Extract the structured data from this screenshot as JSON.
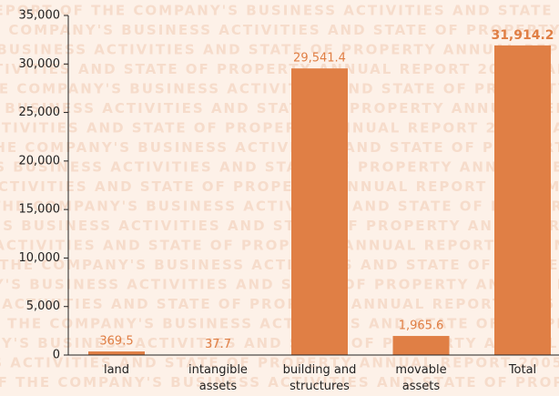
{
  "chart_data": {
    "type": "bar",
    "watermark": "REPORT OF THE COMPANY'S BUSINESS ACTIVITIES AND STATE OF PROPERTY ANNUAL REPORT 2005 MANAGING BOARD",
    "categories": [
      "land",
      "intangible\nassets",
      "building and\nstructures",
      "movable\nassets",
      "Total"
    ],
    "values": [
      369.5,
      37.7,
      29541.4,
      1965.6,
      31914.2
    ],
    "value_labels": [
      "369.5",
      "37.7",
      "29,541.4",
      "1,965.6",
      "31,914.2"
    ],
    "color": "#e07f45",
    "ylim": [
      0,
      35000
    ],
    "yticks": [
      0,
      {
        "value": 5000,
        "label": "5,000"
      },
      {
        "value": 10000,
        "label": "10,000"
      },
      {
        "value": 15000,
        "label": "15,000"
      },
      {
        "value": 20000,
        "label": "20,000"
      },
      {
        "value": 25000,
        "label": "25,000"
      },
      {
        "value": 30000,
        "label": "30,000"
      },
      {
        "value": 35000,
        "label": "35,000"
      }
    ],
    "grid": false
  }
}
